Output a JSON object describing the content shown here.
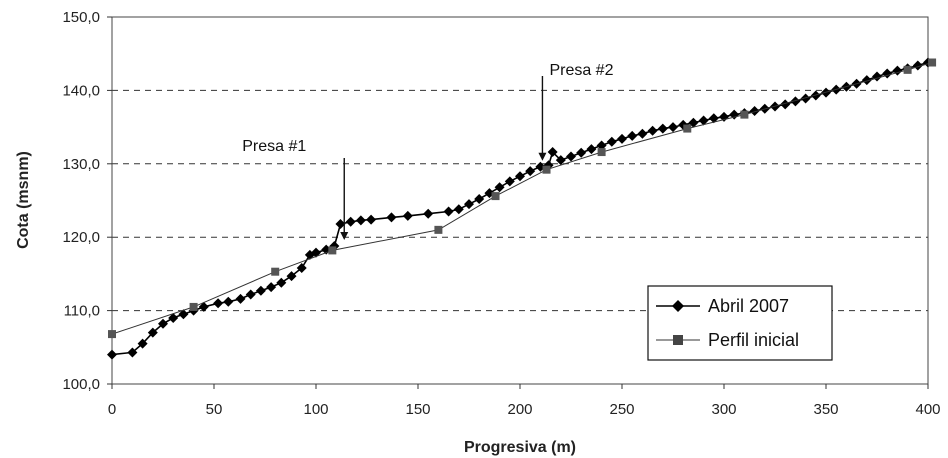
{
  "chart_data": {
    "type": "line",
    "title": "",
    "xlabel": "Progresiva (m)",
    "ylabel": "Cota (msnm)",
    "xlim": [
      0,
      400
    ],
    "ylim": [
      100,
      150
    ],
    "xticks": [
      0,
      50,
      100,
      150,
      200,
      250,
      300,
      350,
      400
    ],
    "yticks": [
      100,
      110,
      120,
      130,
      140,
      150
    ],
    "xtick_labels": [
      "0",
      "50",
      "100",
      "150",
      "200",
      "250",
      "300",
      "350",
      "400"
    ],
    "ytick_labels": [
      "100,0",
      "110,0",
      "120,0",
      "130,0",
      "140,0",
      "150,0"
    ],
    "grid": "horizontal dashed",
    "legend_position": "bottom-right",
    "series": [
      {
        "name": "Abril 2007",
        "marker": "diamond",
        "color": "#000000",
        "points": [
          [
            0,
            104.0
          ],
          [
            10,
            104.3
          ],
          [
            15,
            105.5
          ],
          [
            20,
            107.0
          ],
          [
            25,
            108.2
          ],
          [
            30,
            109.0
          ],
          [
            35,
            109.5
          ],
          [
            40,
            110.0
          ],
          [
            45,
            110.5
          ],
          [
            52,
            111.0
          ],
          [
            57,
            111.2
          ],
          [
            63,
            111.6
          ],
          [
            68,
            112.2
          ],
          [
            73,
            112.7
          ],
          [
            78,
            113.2
          ],
          [
            83,
            113.8
          ],
          [
            88,
            114.7
          ],
          [
            93,
            115.8
          ],
          [
            97,
            117.6
          ],
          [
            100,
            117.9
          ],
          [
            105,
            118.3
          ],
          [
            109,
            118.8
          ],
          [
            112,
            121.8
          ],
          [
            117,
            122.1
          ],
          [
            122,
            122.3
          ],
          [
            127,
            122.4
          ],
          [
            137,
            122.7
          ],
          [
            145,
            122.9
          ],
          [
            155,
            123.2
          ],
          [
            165,
            123.5
          ],
          [
            170,
            123.8
          ],
          [
            175,
            124.5
          ],
          [
            180,
            125.2
          ],
          [
            185,
            126.0
          ],
          [
            190,
            126.8
          ],
          [
            195,
            127.6
          ],
          [
            200,
            128.3
          ],
          [
            205,
            129.0
          ],
          [
            210,
            129.6
          ],
          [
            214,
            129.8
          ],
          [
            216,
            131.6
          ],
          [
            220,
            130.5
          ],
          [
            225,
            131.0
          ],
          [
            230,
            131.5
          ],
          [
            235,
            132.0
          ],
          [
            240,
            132.5
          ],
          [
            245,
            133.0
          ],
          [
            250,
            133.4
          ],
          [
            255,
            133.8
          ],
          [
            260,
            134.1
          ],
          [
            265,
            134.5
          ],
          [
            270,
            134.8
          ],
          [
            275,
            135.0
          ],
          [
            280,
            135.3
          ],
          [
            285,
            135.6
          ],
          [
            290,
            135.9
          ],
          [
            295,
            136.2
          ],
          [
            300,
            136.4
          ],
          [
            305,
            136.7
          ],
          [
            310,
            136.9
          ],
          [
            315,
            137.2
          ],
          [
            320,
            137.5
          ],
          [
            325,
            137.8
          ],
          [
            330,
            138.1
          ],
          [
            335,
            138.5
          ],
          [
            340,
            138.9
          ],
          [
            345,
            139.3
          ],
          [
            350,
            139.7
          ],
          [
            355,
            140.1
          ],
          [
            360,
            140.5
          ],
          [
            365,
            140.9
          ],
          [
            370,
            141.4
          ],
          [
            375,
            141.9
          ],
          [
            380,
            142.3
          ],
          [
            385,
            142.7
          ],
          [
            390,
            143.0
          ],
          [
            395,
            143.4
          ],
          [
            400,
            143.8
          ]
        ]
      },
      {
        "name": "Perfil inicial",
        "marker": "square",
        "color": "#555555",
        "points": [
          [
            0,
            106.8
          ],
          [
            40,
            110.5
          ],
          [
            80,
            115.3
          ],
          [
            108,
            118.2
          ],
          [
            160,
            121.0
          ],
          [
            188,
            125.6
          ],
          [
            213,
            129.2
          ],
          [
            240,
            131.6
          ],
          [
            282,
            134.8
          ],
          [
            310,
            136.7
          ],
          [
            390,
            142.8
          ],
          [
            402,
            143.8
          ]
        ]
      }
    ],
    "annotations": [
      {
        "text": "Presa #1",
        "x": 106,
        "y": 118.8
      },
      {
        "text": "Presa #2",
        "x": 211,
        "y": 129.6
      }
    ]
  },
  "legend": {
    "items": [
      "Abril 2007",
      "Perfil inicial"
    ]
  }
}
